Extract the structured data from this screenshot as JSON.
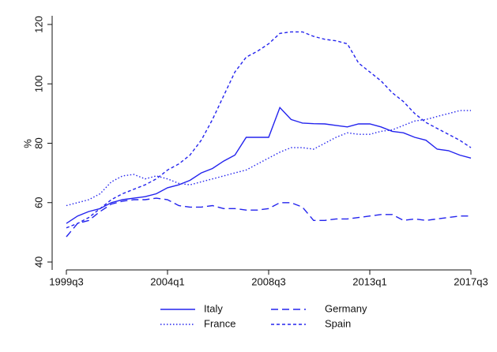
{
  "chart_data": {
    "type": "line",
    "y_label": "%",
    "categories": [
      "1999q3",
      null,
      null,
      null,
      null,
      null,
      null,
      null,
      null,
      "2004q1",
      null,
      null,
      null,
      null,
      null,
      null,
      null,
      null,
      "2008q3",
      null,
      null,
      null,
      null,
      null,
      null,
      null,
      null,
      "2013q1",
      null,
      null,
      null,
      null,
      null,
      null,
      null,
      null,
      "2017q3"
    ],
    "ylim": [
      40,
      120
    ],
    "yticks": [
      40,
      60,
      80,
      100,
      120
    ],
    "legend": "bottom",
    "series": [
      {
        "name": "Italy",
        "color": "#2323ee",
        "dash": "solid",
        "values": [
          53,
          55.5,
          57,
          58,
          60,
          61,
          61.5,
          62,
          63,
          65,
          66,
          67.5,
          70,
          71.5,
          74,
          76,
          82,
          82,
          82,
          92,
          88,
          86.8,
          86.6,
          86.5,
          86,
          85.5,
          86.5,
          86.5,
          85.5,
          84,
          83.5,
          82,
          81,
          78,
          77.5,
          76,
          75
        ]
      },
      {
        "name": "Germany",
        "color": "#2323ee",
        "dash": "long",
        "values": [
          48.5,
          53,
          54,
          57,
          59.5,
          60.5,
          61,
          61,
          61.5,
          61,
          59,
          58.5,
          58.5,
          59,
          58,
          58,
          57.5,
          57.5,
          58,
          60,
          60,
          58.5,
          54,
          54,
          54.5,
          54.5,
          55,
          55.5,
          56,
          56,
          54,
          54.5,
          54,
          54.5,
          55,
          55.5,
          55.5
        ]
      },
      {
        "name": "France",
        "color": "#2323ee",
        "dash": "dotted",
        "values": [
          59,
          60,
          61,
          63,
          67,
          69,
          69.5,
          68,
          69,
          68,
          66.5,
          66,
          67,
          68,
          69,
          70,
          71,
          73,
          75,
          77,
          78.5,
          78.5,
          78,
          80,
          82,
          83.5,
          83,
          83,
          84,
          84.5,
          86,
          87.5,
          88,
          89,
          90,
          91,
          91
        ]
      },
      {
        "name": "Spain",
        "color": "#2323ee",
        "dash": "short",
        "values": [
          51.5,
          53,
          55,
          58,
          61,
          63,
          64.5,
          66,
          68,
          71,
          73,
          76,
          81,
          88,
          96,
          104,
          109,
          111,
          113.5,
          117,
          117.5,
          117.5,
          116,
          115,
          114.5,
          113.5,
          107,
          104,
          101,
          97,
          94,
          90,
          87,
          85,
          83,
          81,
          78.5
        ]
      }
    ]
  }
}
